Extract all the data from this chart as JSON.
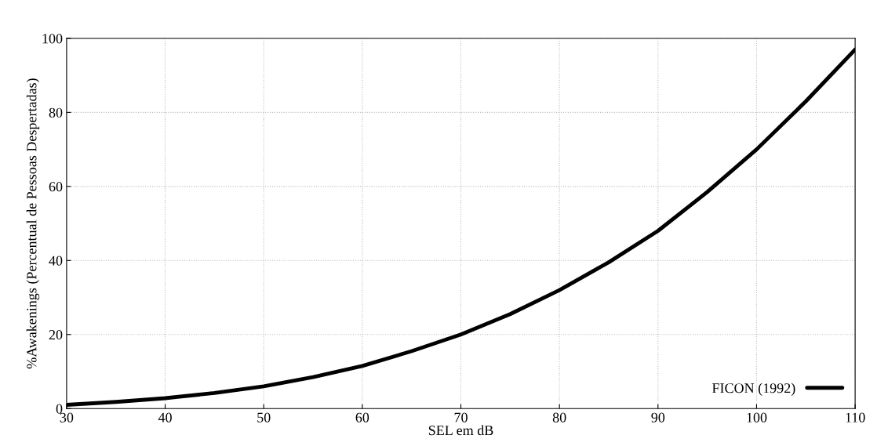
{
  "chart_data": {
    "type": "line",
    "xlabel": "SEL em dB",
    "ylabel": "%Awakenings (Percentual de Pessoas Despertadas)",
    "x": [
      30,
      35,
      40,
      45,
      50,
      55,
      60,
      65,
      70,
      75,
      80,
      85,
      90,
      95,
      100,
      105,
      110
    ],
    "series": [
      {
        "name": "FICON (1992)",
        "color": "#000000",
        "values": [
          1,
          1.8,
          2.8,
          4.2,
          6,
          8.5,
          11.5,
          15.5,
          20,
          25.5,
          32,
          39.5,
          48,
          58.5,
          70,
          83,
          97
        ]
      }
    ],
    "xlim": [
      30,
      110
    ],
    "ylim": [
      0,
      100
    ],
    "xticks": [
      30,
      40,
      50,
      60,
      70,
      80,
      90,
      100,
      110
    ],
    "yticks": [
      0,
      20,
      40,
      60,
      80,
      100
    ],
    "grid": true,
    "legend": "bottom right",
    "marker": "none",
    "line_style": "solid"
  }
}
